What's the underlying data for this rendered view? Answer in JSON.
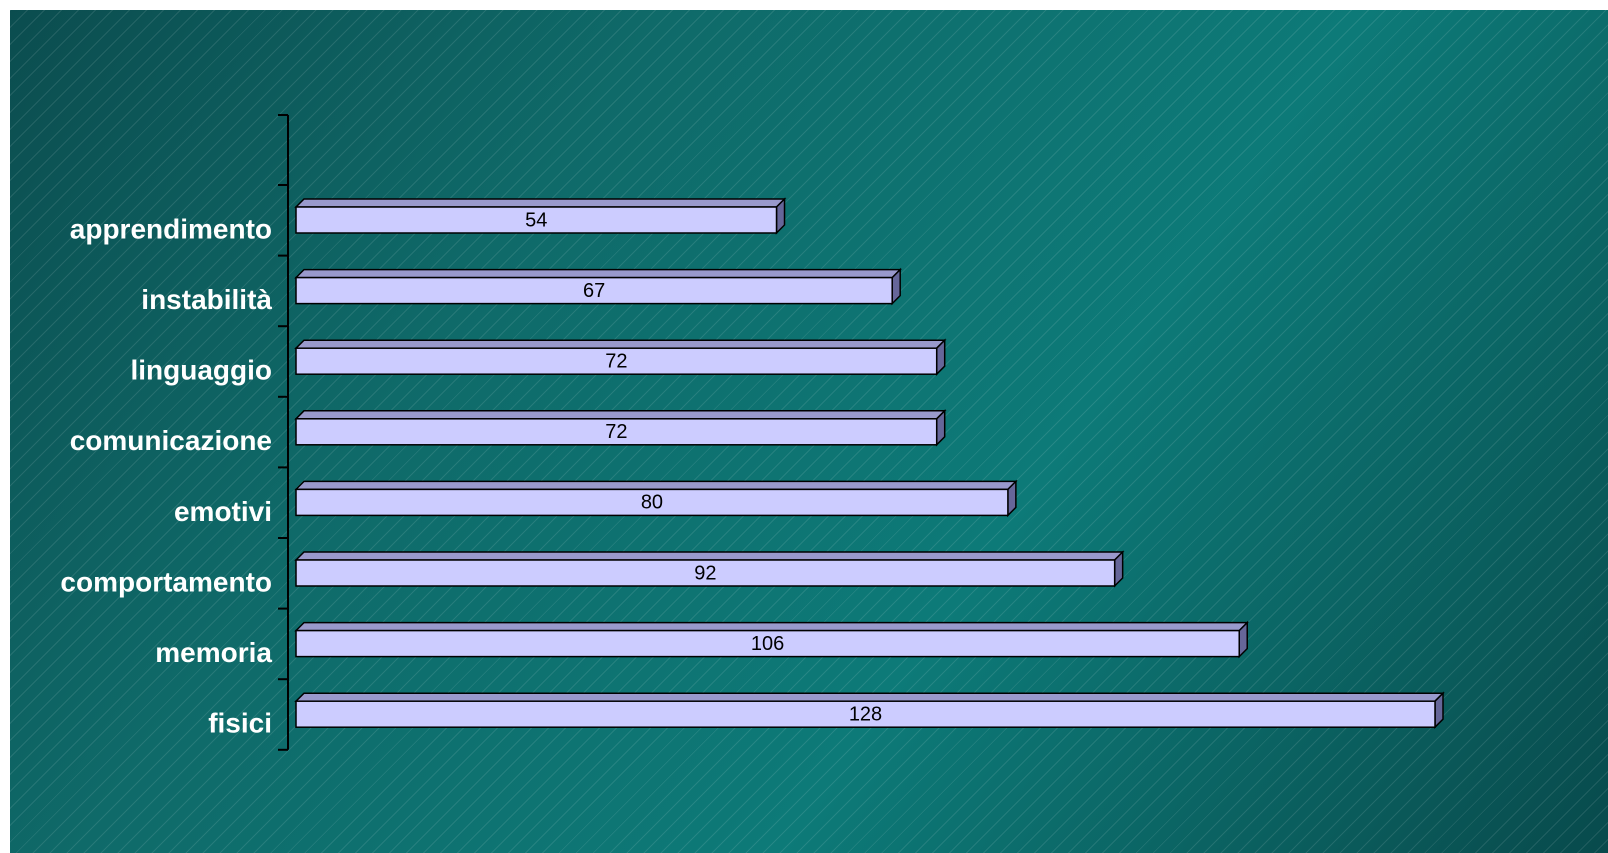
{
  "chart_data": {
    "type": "bar",
    "orientation": "horizontal",
    "categories": [
      "apprendimento",
      "instabilità",
      "linguaggio",
      "comunicazione",
      "emotivi",
      "comportamento",
      "memoria",
      "fisici"
    ],
    "values": [
      54,
      67,
      72,
      72,
      80,
      92,
      106,
      128
    ],
    "data_labels": [
      "54",
      "67",
      "72",
      "72",
      "80",
      "92",
      "106",
      "128"
    ],
    "title": "",
    "xlabel": "",
    "ylabel": "",
    "xlim": [
      0,
      128
    ],
    "grid": false,
    "legend": "none",
    "bar_color": "#ccccff",
    "bar_top_color": "#9999cc",
    "bar_side_color": "#666699",
    "label_color": "#ffffff",
    "background_color": "#0d6e6d"
  }
}
